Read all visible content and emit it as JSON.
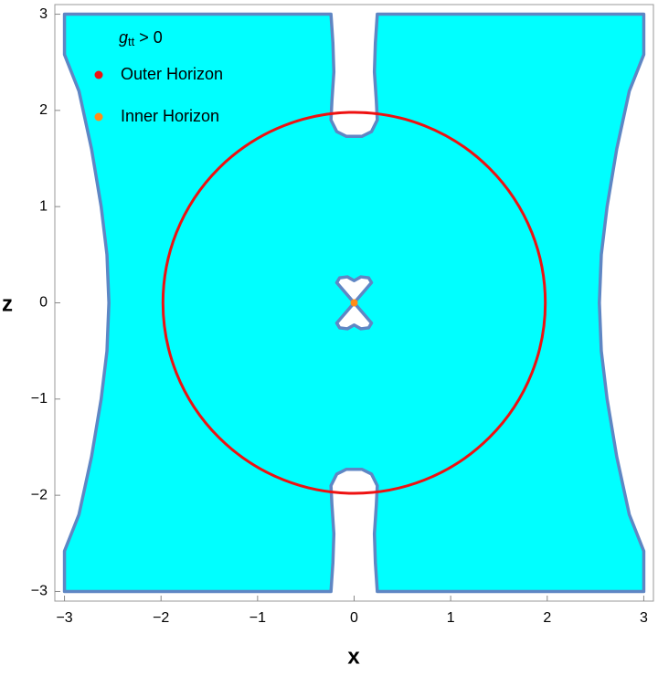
{
  "chart_data": {
    "type": "region",
    "xlabel": "x",
    "ylabel": "z",
    "xlim": [
      -3.1,
      3.1
    ],
    "ylim": [
      -3.1,
      3.1
    ],
    "xticks": [
      {
        "value": -3,
        "label": "−3"
      },
      {
        "value": -2,
        "label": "−2"
      },
      {
        "value": -1,
        "label": "−1"
      },
      0,
      1,
      2,
      3
    ],
    "yticks": [
      {
        "value": -3,
        "label": "−3"
      },
      {
        "value": -2,
        "label": "−2"
      },
      {
        "value": -1,
        "label": "−1"
      },
      0,
      1,
      2,
      3
    ],
    "regions": [
      {
        "name": "g",
        "name_subscript": "tt",
        "name_suffix": " > 0",
        "color": "#00ffff",
        "edge_color": "#5f86c4",
        "outlines": [
          {
            "x": [
              -3,
              -0.24,
              -0.22,
              -0.21,
              -0.23,
              -0.24,
              -0.18,
              -0.08,
              0,
              0.08,
              0.18,
              0.24,
              0.23,
              0.21,
              0.22,
              0.24,
              3,
              3,
              2.85,
              2.72,
              2.62,
              2.56,
              2.54,
              2.56,
              2.62,
              2.72,
              2.85,
              3,
              3,
              0.24,
              0.22,
              0.21,
              0.23,
              0.24,
              0.18,
              0.08,
              0,
              -0.08,
              -0.18,
              -0.24,
              -0.23,
              -0.21,
              -0.22,
              -0.24,
              -3,
              -3,
              -2.85,
              -2.72,
              -2.62,
              -2.56,
              -2.54,
              -2.56,
              -2.62,
              -2.72,
              -2.85,
              -3
            ],
            "y": [
              3,
              3,
              2.7,
              2.4,
              2.1,
              1.9,
              1.78,
              1.73,
              1.73,
              1.73,
              1.78,
              1.9,
              2.1,
              2.4,
              2.7,
              3,
              3,
              2.58,
              2.2,
              1.6,
              1,
              0.5,
              0,
              -0.5,
              -1,
              -1.6,
              -2.2,
              -2.58,
              -3,
              -3,
              -2.7,
              -2.4,
              -2.1,
              -1.9,
              -1.78,
              -1.73,
              -1.73,
              -1.73,
              -1.78,
              -1.9,
              -2.1,
              -2.4,
              -2.7,
              -3,
              -3,
              -2.58,
              -2.2,
              -1.6,
              -1,
              -0.5,
              0,
              0.5,
              1,
              1.6,
              2.2,
              2.58
            ]
          },
          {
            "x": [
              0,
              -0.12,
              -0.18,
              -0.15,
              -0.07,
              0,
              0.07,
              0.15,
              0.18,
              0.12,
              0,
              0.12,
              0.18,
              0.15,
              0.07,
              0,
              -0.07,
              -0.15,
              -0.18,
              -0.12
            ],
            "y": [
              0,
              0.14,
              0.21,
              0.26,
              0.27,
              0.23,
              0.27,
              0.26,
              0.21,
              0.14,
              0,
              -0.14,
              -0.21,
              -0.26,
              -0.27,
              -0.23,
              -0.27,
              -0.26,
              -0.21,
              -0.14
            ]
          }
        ]
      }
    ],
    "circles": [
      {
        "name": "Outer Horizon",
        "color": "#ee1111",
        "cx": 0,
        "cz": 0,
        "r": 1.98
      }
    ],
    "points": [
      {
        "name": "Inner Horizon",
        "color": "#ff8c1a",
        "x": 0,
        "z": 0
      }
    ]
  }
}
